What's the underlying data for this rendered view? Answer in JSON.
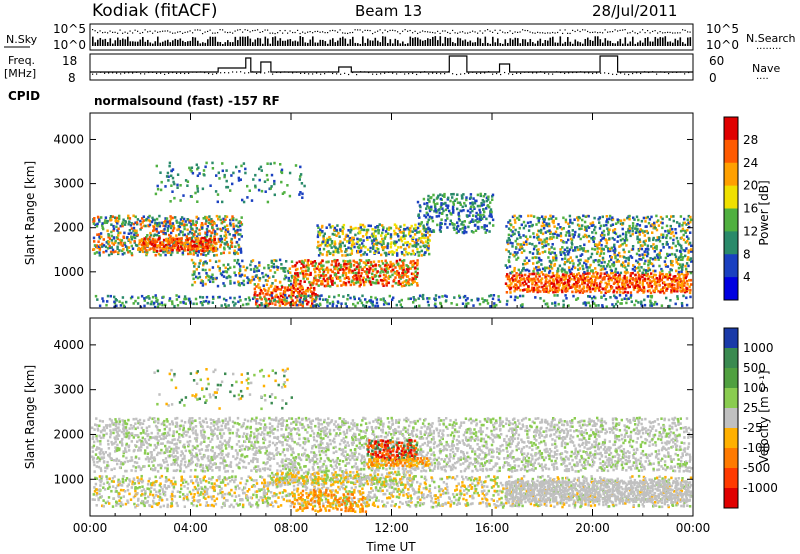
{
  "header": {
    "station": "Kodiak (fitACF)",
    "beam": "Beam 13",
    "date": "28/Jul/2011"
  },
  "sky_panel": {
    "left_label": "N.Sky",
    "right_label": "N.Search",
    "right_dots": "........",
    "left_ticks": [
      "10^5",
      "10^0"
    ],
    "right_ticks": [
      "10^5",
      "10^0"
    ]
  },
  "freq_panel": {
    "left_label_top": "Freq.",
    "left_label_bottom": "[MHz]",
    "right_label": "Nave",
    "right_dots": "....",
    "left_ticks": [
      "18",
      "8"
    ],
    "right_ticks": [
      "60",
      "0"
    ]
  },
  "cpid": {
    "label": "CPID",
    "program": "normalsound (fast) -157 RF"
  },
  "chart_data": [
    {
      "type": "heatmap",
      "name": "power",
      "ylabel": "Slant Range [km]",
      "yticks": [
        1000,
        2000,
        3000,
        4000
      ],
      "ylim": [
        180,
        4600
      ],
      "xticks": [
        "00:00",
        "04:00",
        "08:00",
        "12:00",
        "16:00",
        "20:00",
        "00:00"
      ],
      "xlim_hours": [
        0,
        24
      ],
      "colorbar": {
        "label": "Power [dB]",
        "ticks": [
          "28",
          "24",
          "20",
          "16",
          "12",
          "8",
          "4"
        ],
        "colors": [
          "#e00000",
          "#ff5a00",
          "#ffa000",
          "#f0e000",
          "#50b040",
          "#2a8a6a",
          "#1a40c0",
          "#0000e0"
        ]
      }
    },
    {
      "type": "heatmap",
      "name": "velocity",
      "ylabel": "Slant Range [km]",
      "yticks": [
        1000,
        2000,
        3000,
        4000
      ],
      "ylim": [
        180,
        4600
      ],
      "xticks": [
        "00:00",
        "04:00",
        "08:00",
        "12:00",
        "16:00",
        "20:00",
        "00:00"
      ],
      "xlim_hours": [
        0,
        24
      ],
      "xlabel": "Time UT",
      "colorbar": {
        "label": "Velocity [m s⁻¹]",
        "ticks": [
          "1000",
          "500",
          "100",
          "25",
          "-25",
          "-100",
          "-500",
          "-1000"
        ],
        "colors": [
          "#1a3aa8",
          "#3a8a50",
          "#50a040",
          "#8acc50",
          "#c0c0c0",
          "#ffb000",
          "#ff7a00",
          "#ff3a00",
          "#e00000"
        ]
      }
    }
  ]
}
